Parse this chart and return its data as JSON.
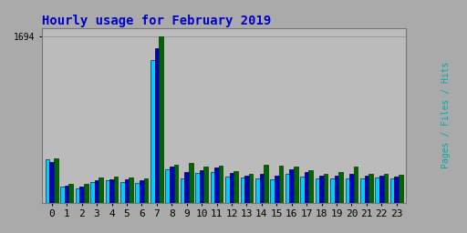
{
  "title": "Hourly usage for February 2019",
  "hours": [
    0,
    1,
    2,
    3,
    4,
    5,
    6,
    7,
    8,
    9,
    10,
    11,
    12,
    13,
    14,
    15,
    16,
    17,
    18,
    19,
    20,
    21,
    22,
    23
  ],
  "hits": [
    440,
    165,
    148,
    210,
    225,
    215,
    205,
    1450,
    340,
    250,
    305,
    315,
    270,
    255,
    245,
    235,
    295,
    270,
    245,
    248,
    250,
    250,
    255,
    248
  ],
  "files": [
    410,
    175,
    168,
    225,
    240,
    235,
    225,
    1570,
    365,
    310,
    335,
    355,
    305,
    278,
    290,
    280,
    340,
    308,
    278,
    280,
    295,
    278,
    275,
    265
  ],
  "pages": [
    455,
    195,
    188,
    255,
    265,
    258,
    248,
    1694,
    388,
    405,
    368,
    375,
    325,
    298,
    385,
    375,
    368,
    328,
    298,
    308,
    370,
    298,
    298,
    285
  ],
  "ylim_max": 1780,
  "ytick_val": 1694,
  "color_hits": "#00ccff",
  "color_files": "#0000cc",
  "color_pages": "#006600",
  "bg_color": "#aaaaaa",
  "plot_bg": "#bbbbbb",
  "title_color": "#0000cc",
  "bar_width": 0.28,
  "xlabel_fontsize": 8,
  "ytick_fontsize": 7,
  "title_fontsize": 10
}
